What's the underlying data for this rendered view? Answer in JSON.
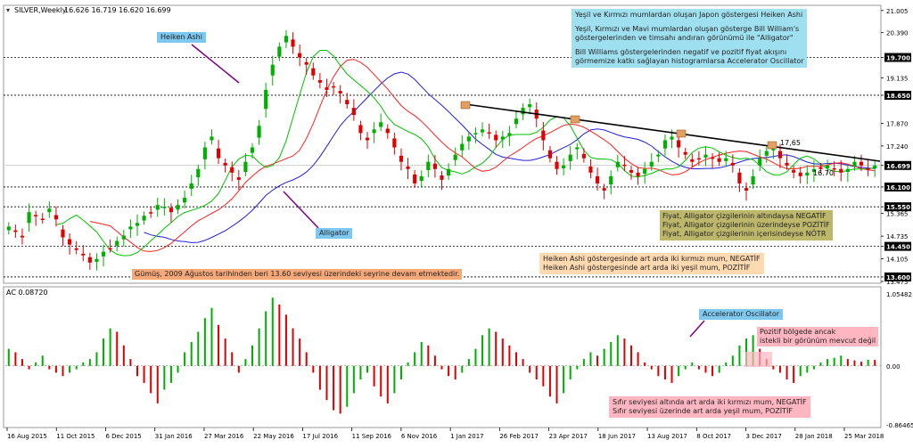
{
  "header": {
    "symbol_label": "SILVER,Weekly",
    "ohlc": "16.626 16.719 16.620 16.699",
    "ac_label": "AC 0.08720"
  },
  "colors": {
    "bull": "#00b000",
    "bear": "#e00000",
    "ma_red": "#ff2020",
    "ma_green": "#00c000",
    "ma_blue": "#2020e0",
    "trendline": "#000000",
    "price_tag_bg": "#000000",
    "label_blue_bg": "#7ec8f0",
    "label_cyan_bg": "#9fe0f0",
    "label_olive_bg": "#bdb76b",
    "label_peach_bg": "#ffd9b0",
    "label_orange_bg": "#f5a878",
    "label_pink_bg": "#ffb6c1",
    "arrow_purple": "#800080"
  },
  "annotations": {
    "heiken_ashi": "Heiken Ashi",
    "alligator": "Alligator",
    "accelerator": "Accelerator Oscillator",
    "top_note": [
      "Yeşil ve Kırmızı mumlardan oluşan Japon göstergesi Heiken Ashi",
      "Yeşil, Kırmızı ve Mavi mumlardan oluşan gösterge Bill William's",
      "göstergelerinden ve timsahı andıran görünümü ile \"Alligator\"",
      "Bill Williams göstergelerinden negatif ve pozitif fiyat akışını",
      "görmemize katkı sağlayan histogramlarsa Accelerator Oscillator"
    ],
    "alligator_rules": [
      "Fiyat, Alligator çizgilerinin altındaysa NEGATİF",
      "Fiyat, Alligator çizgilerinin üzerindeyse POZİTİF",
      "Fiyat, Alligator çizgilerinin içerisindeyse NÖTR"
    ],
    "heiken_rules": [
      "Heiken Ashi göstergesinde art arda iki kırmızı mum, NEGATİF",
      "Heiken Ashi göstergesinde art arda iki  yeşil mum, POZİTİF"
    ],
    "silver_note": "Gümüş, 2009 Ağustos tarihinden beri 13.60 seviyesi  üzerindeki seyrine devam etmektedir.",
    "positive_note": [
      "Pozitif bölgede ancak",
      "istekli bir görünüm mevcut değil"
    ],
    "zero_rules": [
      "Sıfır seviyesi altında art arda iki kırmızı mum, NEGATİF",
      "Sıfır seviyesi üzerinde art arda yeşil mum, POZİTİF"
    ],
    "trend_value": "17,65",
    "current_value": "16.70"
  },
  "chart_data": [
    {
      "type": "candlestick",
      "title": "SILVER,Weekly",
      "ylim": [
        13.475,
        21.05
      ],
      "y_ticks": [
        "21.005",
        "20.390",
        "19.700",
        "19.135",
        "18.650",
        "17.870",
        "17.240",
        "16.699",
        "16.100",
        "15.550",
        "15.365",
        "14.735",
        "14.450",
        "14.105",
        "13.600",
        "13.475"
      ],
      "highlighted_levels": [
        "19.700",
        "18.650",
        "16.699",
        "16.100",
        "15.550",
        "14.450",
        "13.600"
      ],
      "dotted_levels": [
        19.7,
        18.65,
        16.1,
        15.55,
        14.45,
        13.6
      ],
      "x_labels": [
        "16 Aug 2015",
        "11 Oct 2015",
        "6 Dec 2015",
        "31 Jan 2016",
        "27 Mar 2016",
        "22 May 2016",
        "17 Jul 2016",
        "11 Sep 2016",
        "6 Nov 2016",
        "1 Jan 2017",
        "26 Feb 2017",
        "23 Apr 2017",
        "18 Jun 2017",
        "13 Aug 2017",
        "8 Oct 2017",
        "3 Dec 2017",
        "28 Jan 2018",
        "25 Mar 2018"
      ],
      "close": [
        15.0,
        14.85,
        14.7,
        15.4,
        15.3,
        15.2,
        15.5,
        15.2,
        14.7,
        14.5,
        14.35,
        14.2,
        14.0,
        14.1,
        14.3,
        14.4,
        14.6,
        14.75,
        15.0,
        15.1,
        15.3,
        15.4,
        15.6,
        15.55,
        15.4,
        15.6,
        15.8,
        16.2,
        16.6,
        17.2,
        17.5,
        16.9,
        16.7,
        16.5,
        16.3,
        16.8,
        17.2,
        17.8,
        18.8,
        19.5,
        20.0,
        20.3,
        20.0,
        19.7,
        19.5,
        19.2,
        19.0,
        18.8,
        18.9,
        18.7,
        18.4,
        18.1,
        17.6,
        17.4,
        17.7,
        17.9,
        17.6,
        17.2,
        16.8,
        16.6,
        16.2,
        16.4,
        16.8,
        16.6,
        16.3,
        16.6,
        17.0,
        17.3,
        17.5,
        17.6,
        17.7,
        17.6,
        17.4,
        17.5,
        17.6,
        18.0,
        18.3,
        18.4,
        18.0,
        17.4,
        16.9,
        16.6,
        16.7,
        17.0,
        17.2,
        16.9,
        16.5,
        16.2,
        16.0,
        16.4,
        16.8,
        16.7,
        16.5,
        16.4,
        16.6,
        16.8,
        17.0,
        17.4,
        17.5,
        17.2,
        17.0,
        16.8,
        16.9,
        17.0,
        16.9,
        16.8,
        16.9,
        16.7,
        16.2,
        16.0,
        16.4,
        16.9,
        17.1,
        17.2,
        16.9,
        16.7,
        16.5,
        16.4,
        16.5,
        16.6,
        16.6,
        16.7,
        16.6,
        16.5,
        16.6,
        16.8,
        16.7,
        16.6,
        16.7
      ],
      "ac": [
        0.25,
        0.2,
        0.1,
        -0.05,
        0.05,
        0.15,
        -0.05,
        -0.1,
        -0.15,
        -0.1,
        -0.05,
        0.05,
        0.1,
        0.2,
        0.4,
        0.55,
        0.5,
        0.3,
        0.1,
        -0.15,
        -0.25,
        -0.4,
        -0.55,
        -0.35,
        -0.25,
        -0.1,
        0.2,
        0.35,
        0.5,
        0.7,
        0.85,
        0.6,
        0.4,
        0.2,
        -0.1,
        0.1,
        0.3,
        0.55,
        0.8,
        1.0,
        0.9,
        0.75,
        0.55,
        0.4,
        0.2,
        -0.1,
        -0.35,
        -0.5,
        -0.65,
        -0.7,
        -0.6,
        -0.4,
        -0.2,
        -0.1,
        -0.3,
        -0.45,
        -0.55,
        -0.4,
        -0.2,
        0.05,
        0.2,
        0.35,
        0.3,
        0.15,
        -0.05,
        -0.15,
        -0.2,
        -0.1,
        0.1,
        0.25,
        0.45,
        0.55,
        0.5,
        0.4,
        0.3,
        0.2,
        0.1,
        -0.1,
        -0.2,
        -0.3,
        -0.45,
        -0.55,
        -0.4,
        -0.2,
        -0.05,
        0.1,
        0.2,
        0.15,
        0.25,
        0.35,
        0.45,
        0.4,
        0.3,
        0.2,
        0.05,
        -0.05,
        -0.15,
        -0.2,
        -0.25,
        -0.15,
        -0.05,
        0.05,
        -0.05,
        -0.1,
        -0.15,
        -0.1,
        0.05,
        0.15,
        0.3,
        0.4,
        0.45,
        0.25,
        0.1,
        -0.05,
        -0.1,
        -0.2,
        -0.25,
        -0.15,
        -0.1,
        -0.05,
        0.05,
        0.1,
        0.12,
        0.15,
        0.1,
        0.08,
        0.06,
        0.09,
        0.087
      ],
      "ac_ylim": [
        -0.86465,
        1.05482
      ],
      "ac_ticks": [
        "1.05482",
        "0.00",
        "-0.86465"
      ],
      "current_price": 16.699,
      "ac_current": 0.0872
    }
  ]
}
